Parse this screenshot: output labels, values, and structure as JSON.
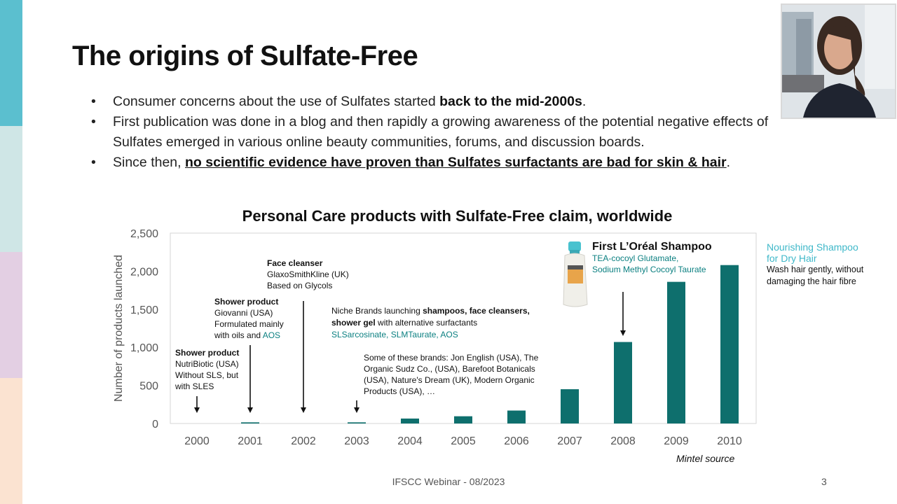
{
  "slide": {
    "title": "The origins of Sulfate-Free",
    "bullets": [
      {
        "pre": "Consumer concerns about the use of Sulfates started ",
        "strong": "back to the mid-2000s",
        "post": "."
      },
      {
        "pre": "First publication was done in a blog and then rapidly a growing awareness of the potential negative effects of Sulfates emerged in various online beauty communities, forums, and discussion boards."
      },
      {
        "pre": "Since then, ",
        "strong": "no scientific evidence have proven than Sulfates surfactants are bad for skin & hair",
        "post": "."
      }
    ],
    "footer": "IFSCC Webinar - 08/2023",
    "page_number": "3",
    "source": "Mintel source"
  },
  "annotations": {
    "a2000": {
      "title": "Shower product",
      "l1": "NutriBiotic (USA)",
      "l2": "Without SLS, but",
      "l3": "with SLES"
    },
    "a2001": {
      "title": "Shower product",
      "l1": "Giovanni (USA)",
      "l2": "Formulated mainly",
      "l3a": "with oils and ",
      "l3b": "AOS"
    },
    "a2002": {
      "title": "Face cleanser",
      "l1": "GlaxoSmithKline (UK)",
      "l2": "Based on Glycols"
    },
    "niche": {
      "pre": "Niche Brands launching ",
      "strong": "shampoos, face cleansers, shower gel",
      "post": " with alternative surfactants",
      "teal": "SLSarcosinate, SLMTaurate, AOS"
    },
    "brands": "Some of these brands: Jon English (USA), The Organic Sudz Co., (USA), Barefoot Botanicals (USA), Nature's Dream (UK), Modern Organic Products (USA), …",
    "loreal": {
      "title": "First L’Oréal Shampoo",
      "l1": "TEA-cocoyl Glutamate,",
      "l2": "Sodium Methyl Cocoyl Taurate"
    },
    "side": {
      "teal": "Nourishing Shampoo for Dry Hair",
      "black": "Wash hair gently, without damaging the hair fibre"
    }
  },
  "colors": {
    "bar": "#0e6f6d",
    "accent_teal": "#0a7f80",
    "side_teal": "#3fb8c9"
  },
  "chart_data": {
    "type": "bar",
    "title": "Personal Care products with Sulfate-Free claim, worldwide",
    "xlabel": "",
    "ylabel": "Number of products launched",
    "categories": [
      "2000",
      "2001",
      "2002",
      "2003",
      "2004",
      "2005",
      "2006",
      "2007",
      "2008",
      "2009",
      "2010"
    ],
    "values": [
      0,
      15,
      0,
      15,
      65,
      95,
      170,
      450,
      1070,
      1860,
      2080
    ],
    "ylim": [
      0,
      2500
    ],
    "yticks": [
      "0",
      "500",
      "1,000",
      "1,500",
      "2,000",
      "2,500"
    ],
    "grid": false,
    "legend": "none"
  }
}
